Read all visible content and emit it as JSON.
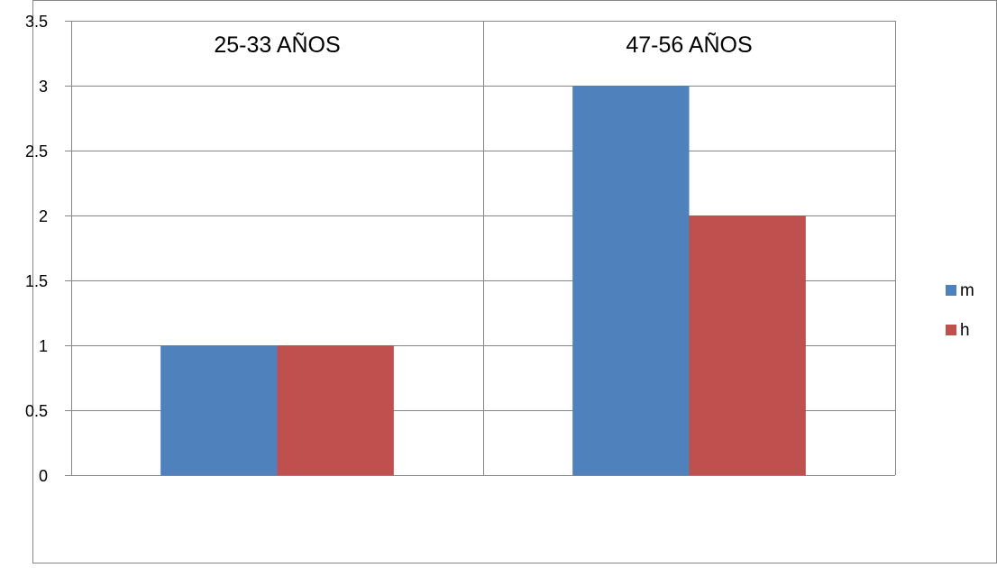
{
  "chart_data": {
    "type": "bar",
    "categories": [
      "25-33 AÑOS",
      "47-56 AÑOS"
    ],
    "series": [
      {
        "name": "m",
        "values": [
          1,
          3
        ],
        "color": "#4f81bd"
      },
      {
        "name": "h",
        "values": [
          1,
          2
        ],
        "color": "#c0504d"
      }
    ],
    "ylim": [
      0,
      3.5
    ],
    "yticks": [
      0,
      0.5,
      1,
      1.5,
      2,
      2.5,
      3,
      3.5
    ],
    "ytick_labels": [
      "0",
      "0.5",
      "1",
      "1.5",
      "2",
      "2.5",
      "3",
      "3.5"
    ],
    "category_label_position": "top",
    "grid": true,
    "legend_position": "right"
  }
}
